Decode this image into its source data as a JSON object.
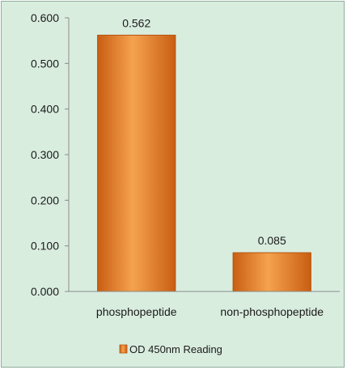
{
  "chart_data": {
    "type": "bar",
    "categories": [
      "phosphopeptide",
      "non-phosphopeptide"
    ],
    "series": [
      {
        "name": "OD 450nm Reading",
        "values": [
          0.562,
          0.085
        ],
        "value_labels": [
          "0.562",
          "0.085"
        ],
        "color": "#e8822a"
      }
    ],
    "y_ticks": [
      {
        "value": 0.0,
        "label": "0.000"
      },
      {
        "value": 0.1,
        "label": "0.100"
      },
      {
        "value": 0.2,
        "label": "0.200"
      },
      {
        "value": 0.3,
        "label": "0.300"
      },
      {
        "value": 0.4,
        "label": "0.400"
      },
      {
        "value": 0.5,
        "label": "0.500"
      },
      {
        "value": 0.6,
        "label": "0.600"
      }
    ],
    "ylim": [
      0,
      0.6
    ],
    "grid": false,
    "legend_position": "bottom",
    "background_color": "#d9eddf",
    "axis_color": "#8a8a8a"
  }
}
